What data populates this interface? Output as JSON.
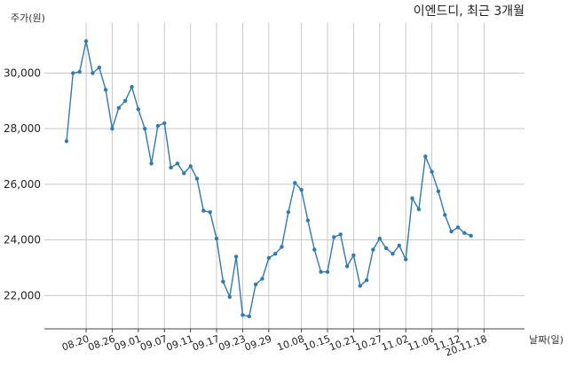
{
  "chart_data": {
    "type": "line",
    "title": "이엔드디, 최근 3개월",
    "ylabel": "주가(원)",
    "xlabel": "날짜(일)",
    "ylim": [
      20800,
      31800
    ],
    "yticks": [
      22000,
      24000,
      26000,
      28000,
      30000
    ],
    "ytick_labels": [
      "22,000",
      "24,000",
      "26,000",
      "28,000",
      "30,000"
    ],
    "xtick_labels": [
      "08.20",
      "08.26",
      "09.01",
      "09.07",
      "09.11",
      "09.17",
      "09.23",
      "09.29",
      "10.08",
      "10.15",
      "10.21",
      "10.27",
      "11.02",
      "11.06",
      "11.12",
      "20.11.18"
    ],
    "xtick_positions": [
      3,
      7,
      11,
      15,
      19,
      23,
      27,
      31,
      36,
      40,
      44,
      48,
      52,
      56,
      60,
      64
    ],
    "grid": true,
    "color": "#2f7bb5",
    "series": [
      {
        "values": [
          27550,
          30000,
          30050,
          31150,
          30000,
          30200,
          29400,
          28000,
          28750,
          29000,
          29500,
          28700,
          28000,
          26750,
          28100,
          28200,
          26600,
          26750,
          26400,
          26650,
          26200,
          25050,
          25000,
          24050,
          22500,
          21950,
          23400,
          21300,
          21250,
          22400,
          22600,
          23350,
          23500,
          23750,
          25000,
          26050,
          25800,
          24700,
          23650,
          22850,
          22850,
          24100,
          24200,
          23050,
          23450,
          22350,
          22550,
          23650,
          24050,
          23700,
          23500,
          23800,
          23300,
          25500,
          25100,
          27000,
          26450,
          25750,
          24900,
          24300,
          24450,
          24250,
          24150
        ]
      }
    ]
  }
}
